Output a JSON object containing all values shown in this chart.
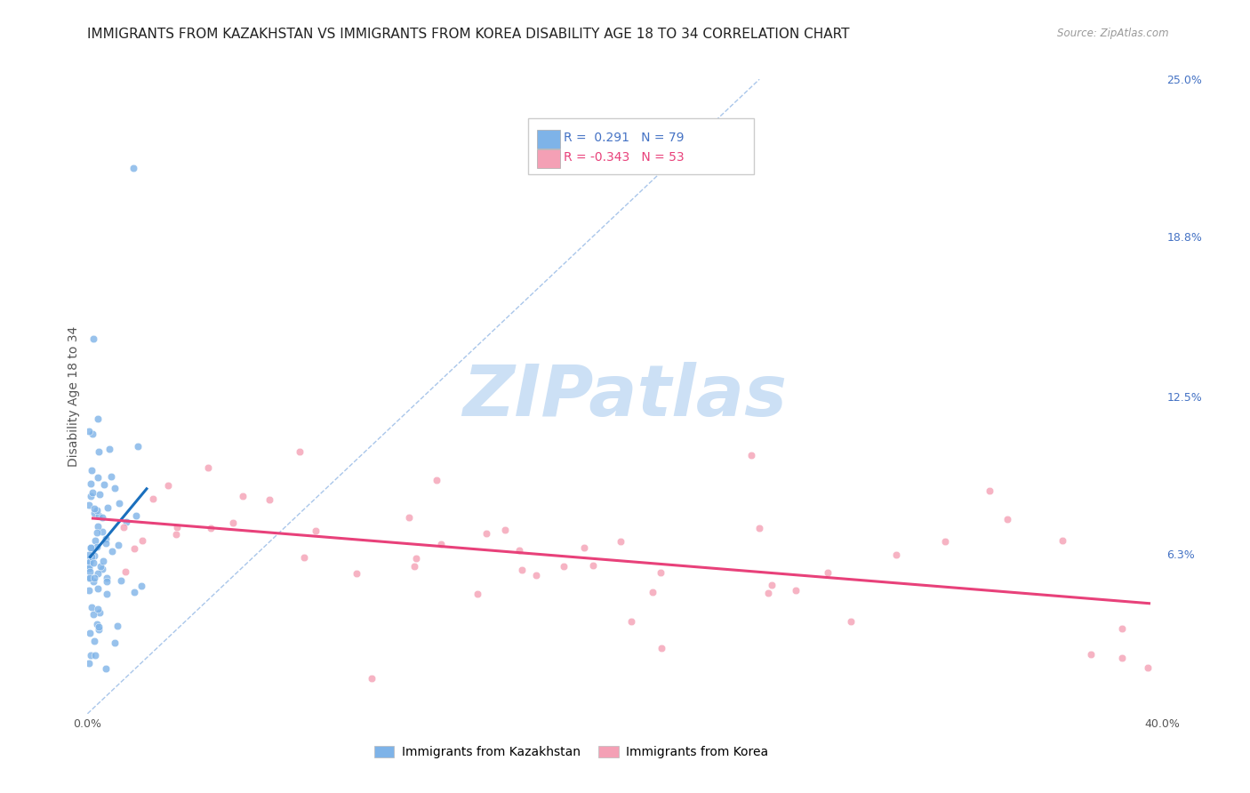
{
  "title": "IMMIGRANTS FROM KAZAKHSTAN VS IMMIGRANTS FROM KOREA DISABILITY AGE 18 TO 34 CORRELATION CHART",
  "source": "Source: ZipAtlas.com",
  "ylabel": "Disability Age 18 to 34",
  "xlim": [
    0.0,
    0.4
  ],
  "ylim": [
    0.0,
    0.25
  ],
  "xtick_positions": [
    0.0,
    0.1,
    0.2,
    0.3,
    0.4
  ],
  "xticklabels": [
    "0.0%",
    "",
    "",
    "",
    "40.0%"
  ],
  "yticks_right": [
    0.0,
    0.063,
    0.125,
    0.188,
    0.25
  ],
  "ytick_labels_right": [
    "",
    "6.3%",
    "12.5%",
    "18.8%",
    "25.0%"
  ],
  "kazakhstan_color": "#7eb3e8",
  "korea_color": "#f4a0b5",
  "trendline_kazakhstan_color": "#1a6fbd",
  "trendline_korea_color": "#e8417a",
  "diagonal_color": "#a0c0e8",
  "background_color": "#ffffff",
  "grid_color": "#e0e0e0",
  "watermark_text": "ZIPatlas",
  "watermark_color": "#cce0f5",
  "legend_r_kaz": " 0.291",
  "legend_n_kaz": "79",
  "legend_r_kor": "-0.343",
  "legend_n_kor": "53",
  "legend_color_kaz": "#4472c4",
  "legend_color_kor": "#e8417a",
  "title_fontsize": 11,
  "axis_label_fontsize": 10,
  "tick_fontsize": 9,
  "legend_fontsize": 10
}
